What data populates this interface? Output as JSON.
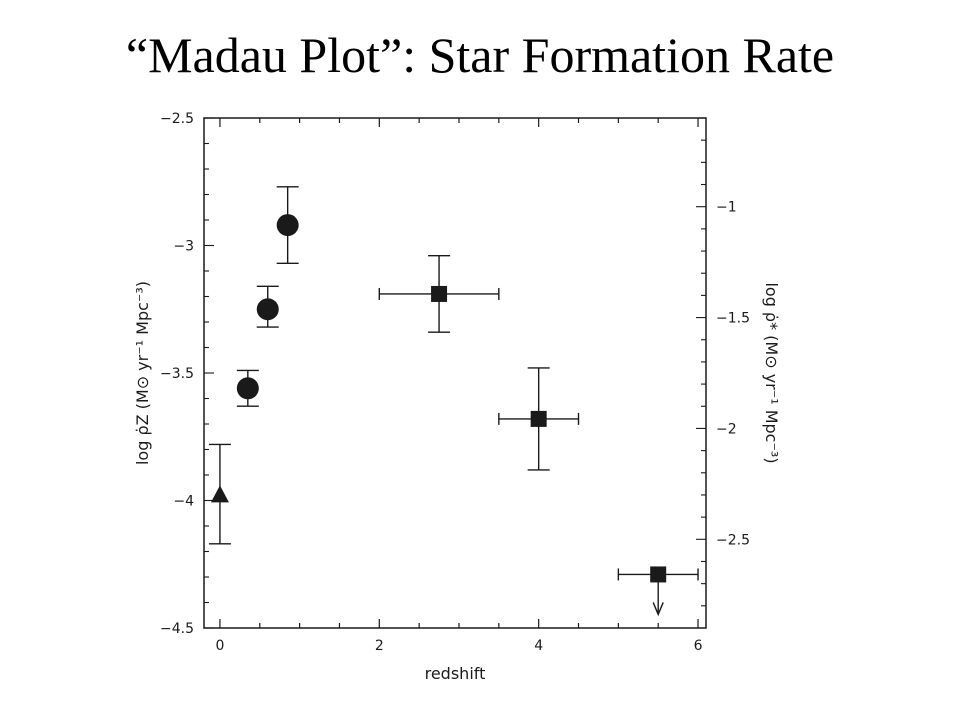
{
  "slide": {
    "title": "“Madau Plot”: Star Formation Rate"
  },
  "chart_data": {
    "type": "scatter",
    "title": "",
    "xlabel": "redshift",
    "ylabel": "log ρ̇Z (M⊙ yr⁻¹ Mpc⁻³)",
    "ylabel_right": "log ρ̇* (M⊙ yr⁻¹ Mpc⁻³)",
    "xlim": [
      -0.2,
      6.1
    ],
    "ylim": [
      -4.5,
      -2.5
    ],
    "ylim_right": [
      -2.9,
      -0.6
    ],
    "x_ticks": [
      0,
      2,
      4,
      6
    ],
    "y_ticks_left": [
      -4.5,
      -4,
      -3.5,
      -3,
      -2.5
    ],
    "y_tick_labels_left": [
      "−4.5",
      "−4",
      "−3.5",
      "−3",
      "−2.5"
    ],
    "y_ticks_right": [
      -2.5,
      -2,
      -1.5,
      -1
    ],
    "y_tick_labels_right": [
      "−2.5",
      "−2",
      "−1.5",
      "−1"
    ],
    "grid": false,
    "series": [
      {
        "marker": "triangle",
        "points": [
          {
            "x": 0.0,
            "y": -3.98,
            "ylo": -4.17,
            "yhi": -3.78
          }
        ]
      },
      {
        "marker": "circle",
        "points": [
          {
            "x": 0.35,
            "y": -3.56,
            "ylo": -3.63,
            "yhi": -3.49
          },
          {
            "x": 0.6,
            "y": -3.25,
            "ylo": -3.32,
            "yhi": -3.16
          },
          {
            "x": 0.85,
            "y": -2.92,
            "ylo": -3.07,
            "yhi": -2.77
          }
        ]
      },
      {
        "marker": "square",
        "points": [
          {
            "x": 2.75,
            "y": -3.19,
            "xlo": 2.0,
            "xhi": 3.5,
            "ylo": -3.34,
            "yhi": -3.04
          },
          {
            "x": 4.0,
            "y": -3.68,
            "xlo": 3.5,
            "xhi": 4.5,
            "ylo": -3.88,
            "yhi": -3.48
          },
          {
            "x": 5.5,
            "y": -4.29,
            "xlo": 5.0,
            "xhi": 6.0,
            "upper_limit": true
          }
        ]
      }
    ]
  }
}
